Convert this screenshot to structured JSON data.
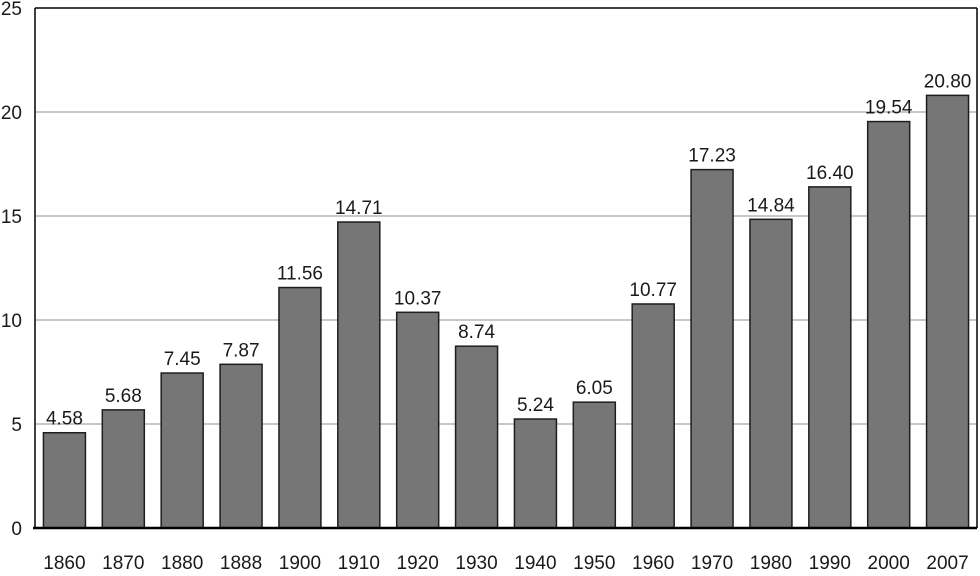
{
  "chart_data": {
    "type": "bar",
    "categories": [
      "1860",
      "1870",
      "1880",
      "1888",
      "1900",
      "1910",
      "1920",
      "1930",
      "1940",
      "1950",
      "1960",
      "1970",
      "1980",
      "1990",
      "2000",
      "2007"
    ],
    "values": [
      4.58,
      5.68,
      7.45,
      7.87,
      11.56,
      14.71,
      10.37,
      8.74,
      5.24,
      6.05,
      10.77,
      17.23,
      14.84,
      16.4,
      19.54,
      20.8
    ],
    "value_labels": [
      "4.58",
      "5.68",
      "7.45",
      "7.87",
      "11.56",
      "14.71",
      "10.37",
      "8.74",
      "5.24",
      "6.05",
      "10.77",
      "17.23",
      "14.84",
      "16.40",
      "19.54",
      "20.80"
    ],
    "y_ticks": [
      "0",
      "5",
      "10",
      "15",
      "20",
      "25"
    ],
    "ylim": [
      0,
      25
    ],
    "grid": true,
    "legend": "none",
    "title": "",
    "xlabel": "",
    "ylabel": "",
    "colors": {
      "bar": "#767676",
      "bar_outline": "#1e1e1e",
      "grid": "#a6a6a6",
      "axis": "#000000"
    }
  }
}
